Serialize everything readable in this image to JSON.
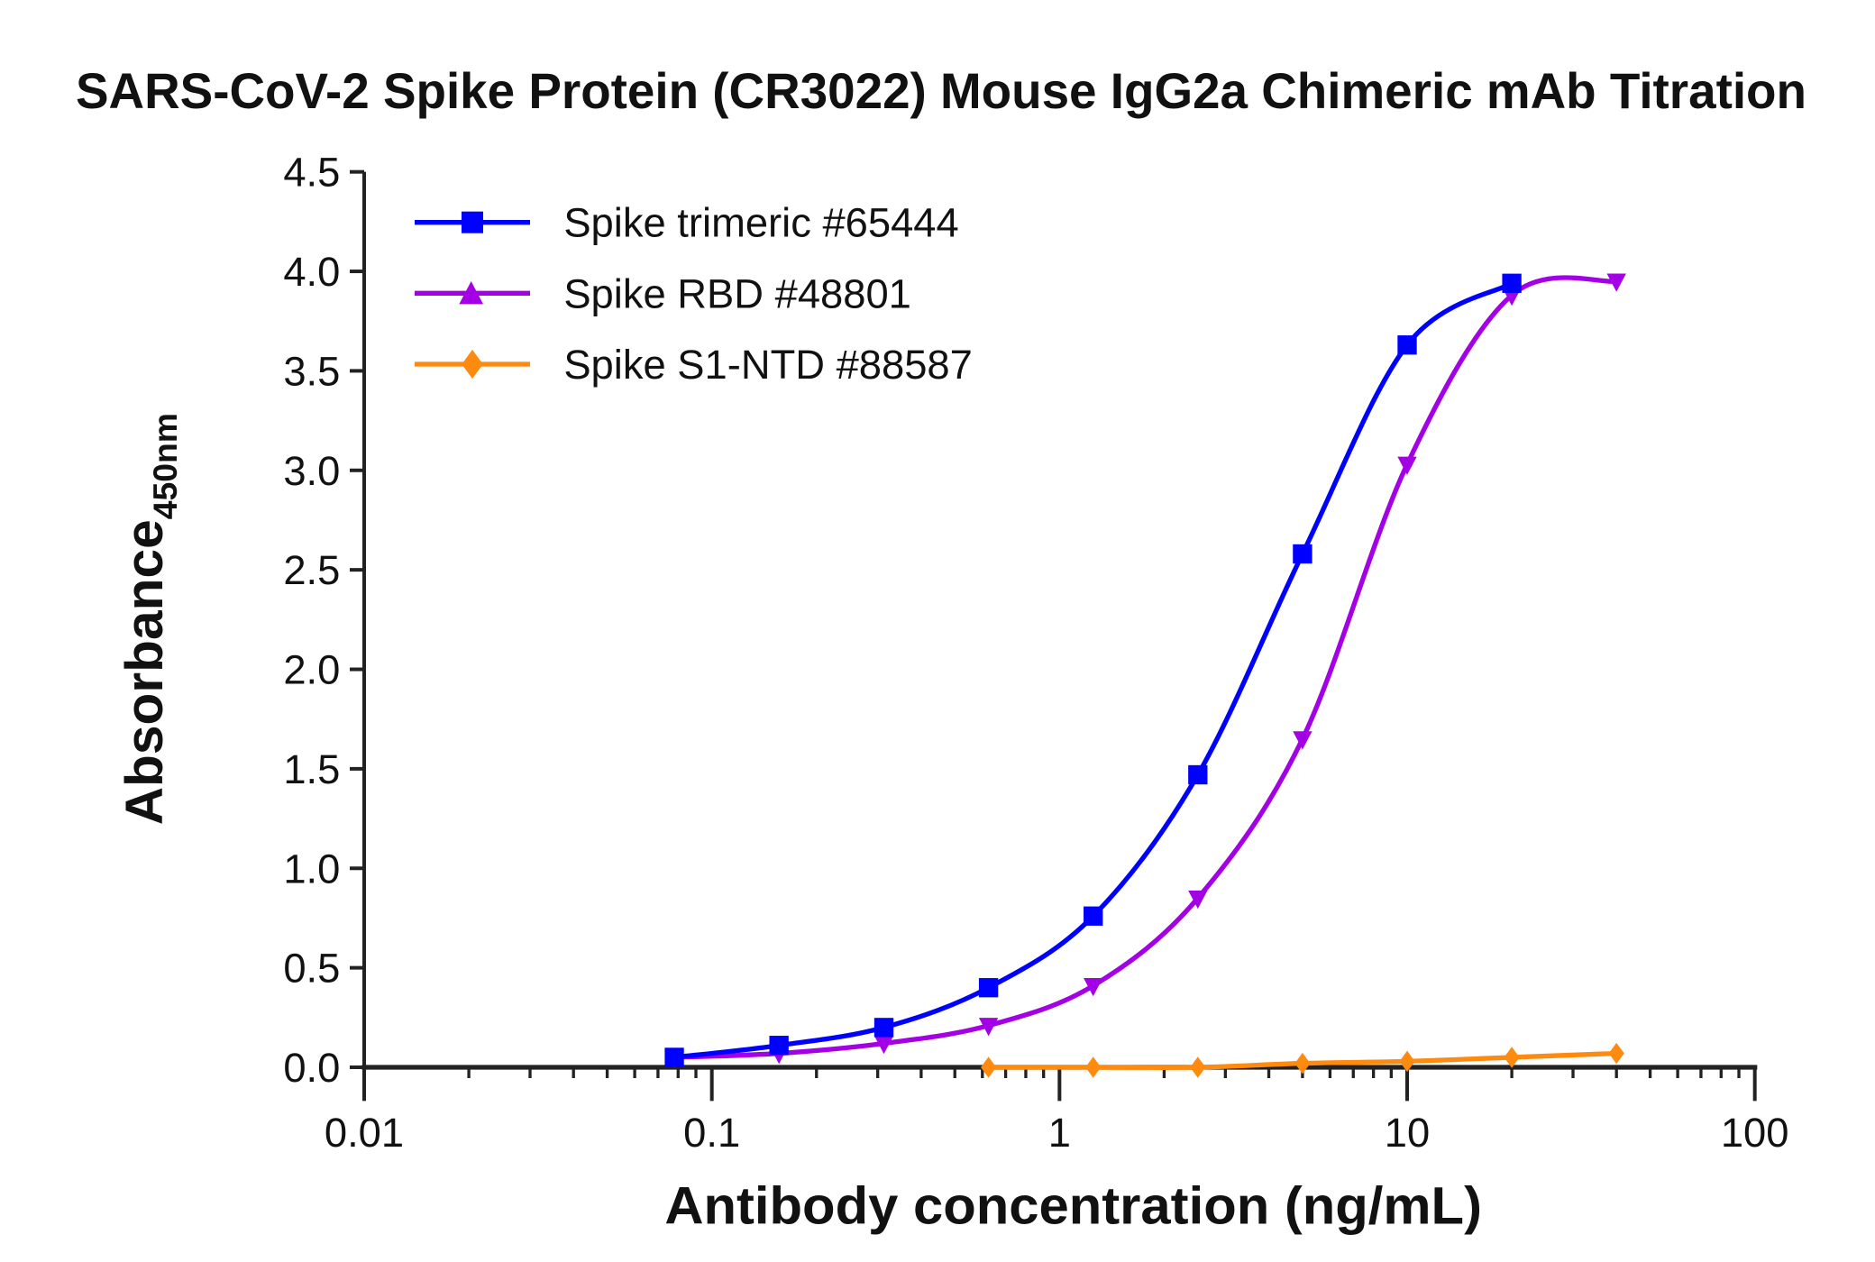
{
  "chart_data": {
    "type": "line",
    "title": "SARS-CoV-2 Spike Protein (CR3022) Mouse IgG2a Chimeric mAb Titration",
    "xlabel": "Antibody concentration (ng/mL)",
    "ylabel": "Absorbance",
    "ylabel_subscript": "450nm",
    "xscale": "log",
    "xlim": [
      0.01,
      100
    ],
    "ylim": [
      0,
      4.5
    ],
    "xticks": [
      "0.01",
      "0.1",
      "1",
      "10",
      "100"
    ],
    "yticks": [
      "0.0",
      "0.5",
      "1.0",
      "1.5",
      "2.0",
      "2.5",
      "3.0",
      "3.5",
      "4.0",
      "4.5"
    ],
    "grid": false,
    "legend_position": "top-left",
    "series": [
      {
        "name": "Spike trimeric #65444",
        "color": "#0000ff",
        "marker": "square",
        "x": [
          0.078,
          0.156,
          0.3125,
          0.625,
          1.25,
          2.5,
          5,
          10,
          20
        ],
        "y": [
          0.05,
          0.11,
          0.2,
          0.4,
          0.76,
          1.47,
          2.58,
          3.63,
          3.94
        ]
      },
      {
        "name": "Spike RBD #48801",
        "color": "#a400e6",
        "marker": "triangle",
        "x": [
          0.078,
          0.156,
          0.3125,
          0.625,
          1.25,
          2.5,
          5,
          10,
          20,
          40
        ],
        "y": [
          0.05,
          0.07,
          0.12,
          0.21,
          0.41,
          0.85,
          1.65,
          3.03,
          3.88,
          3.95
        ]
      },
      {
        "name": "Spike S1-NTD #88587",
        "color": "#ff8a10",
        "marker": "diamond",
        "x": [
          0.625,
          1.25,
          2.5,
          5,
          10,
          20,
          40
        ],
        "y": [
          0.0,
          0.0,
          0.0,
          0.02,
          0.03,
          0.05,
          0.07
        ]
      }
    ]
  }
}
